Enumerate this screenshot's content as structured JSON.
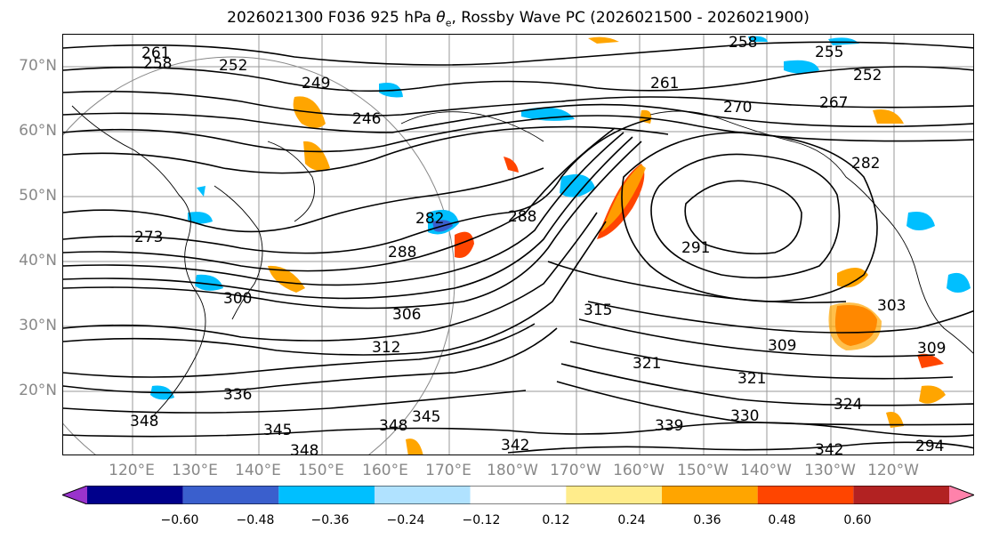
{
  "title_prefix": "2026021300 F036 925 hPa ",
  "theta_symbol": "θ",
  "theta_sub": "e",
  "title_suffix": ", Rossby Wave PC (2026021500 - 2026021900)",
  "lat_labels": [
    "70°N",
    "60°N",
    "50°N",
    "40°N",
    "30°N",
    "20°N"
  ],
  "lon_labels": [
    "120°E",
    "130°E",
    "140°E",
    "150°E",
    "160°E",
    "170°E",
    "180°W",
    "170°W",
    "160°W",
    "150°W",
    "140°W",
    "130°W",
    "120°W"
  ],
  "contour_labels": [
    "261",
    "258",
    "249",
    "252",
    "246",
    "258",
    "255",
    "252",
    "261",
    "267",
    "270",
    "282",
    "282",
    "288",
    "291",
    "273",
    "288",
    "300",
    "306",
    "312",
    "315",
    "309",
    "321",
    "321",
    "324",
    "330",
    "336",
    "339",
    "342",
    "342",
    "345",
    "345",
    "348",
    "348",
    "348",
    "294",
    "303",
    "309"
  ],
  "colorbar": {
    "colors": [
      "#9933cc",
      "#00008b",
      "#3a5fcd",
      "#00bfff",
      "#b0e2ff",
      "#ffffff",
      "#ffec8b",
      "#ffa500",
      "#ff4500",
      "#b22222",
      "#ff82ab"
    ],
    "ticks": [
      "−0.60",
      "−0.48",
      "−0.36",
      "−0.24",
      "−0.12",
      "0.12",
      "0.24",
      "0.36",
      "0.48",
      "0.60"
    ]
  }
}
